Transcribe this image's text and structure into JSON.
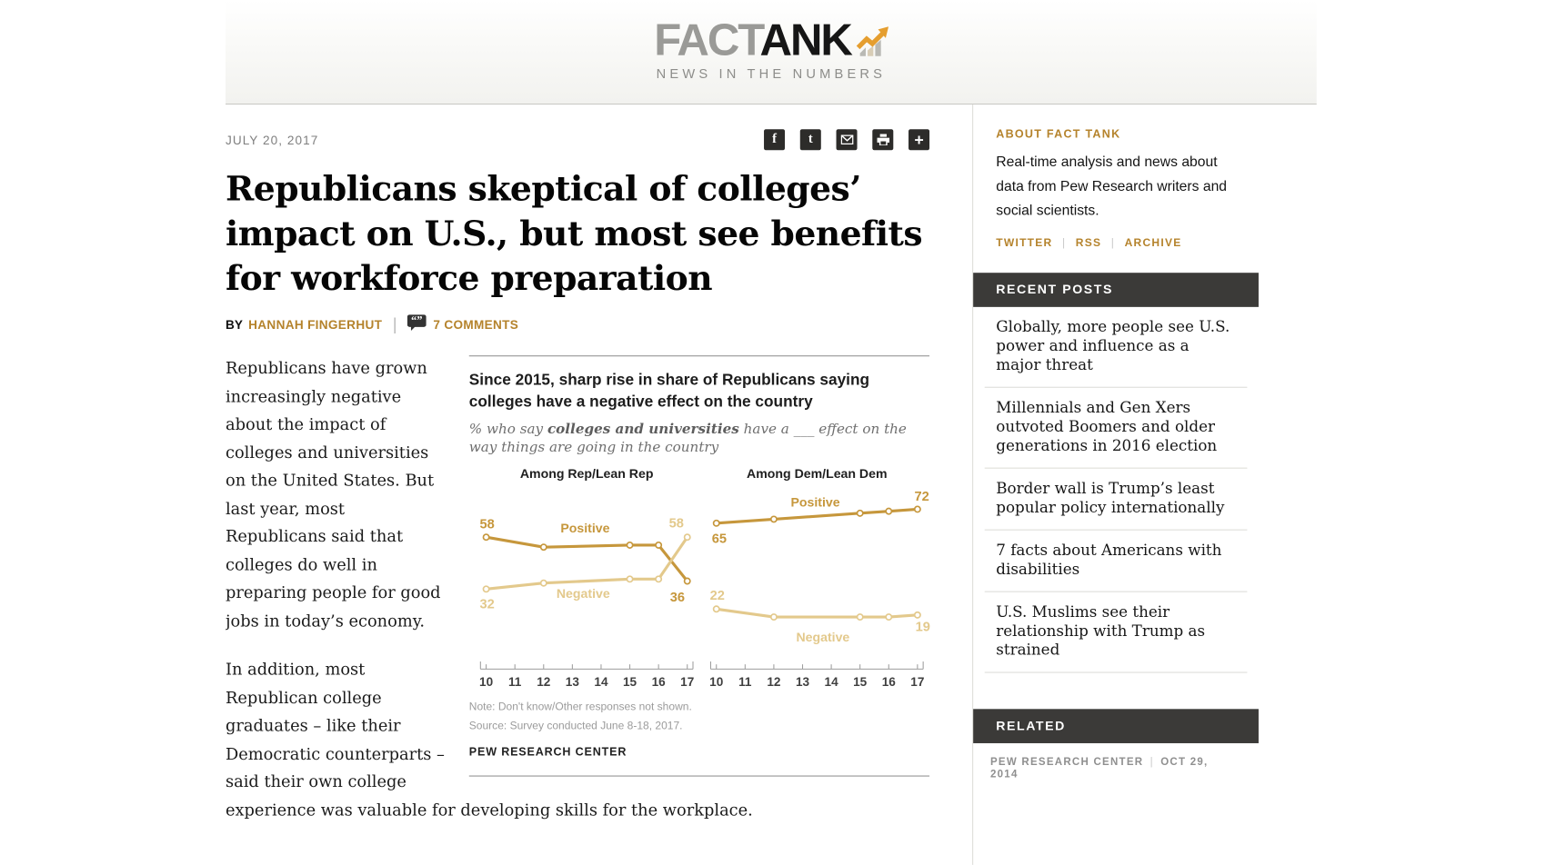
{
  "colors": {
    "accent_gold": "#b5832c",
    "dark_bar": "#3b3a38",
    "chart_positive": "#c6973c",
    "chart_negative": "#e3c98c"
  },
  "header": {
    "logo_part1": "FACT",
    "logo_part2": "ANK",
    "tagline": "NEWS IN THE NUMBERS"
  },
  "article": {
    "date": "JULY 20, 2017",
    "share_icons": [
      {
        "name": "facebook",
        "glyph": "f"
      },
      {
        "name": "twitter",
        "glyph": "t"
      },
      {
        "name": "email",
        "glyph": ""
      },
      {
        "name": "print",
        "glyph": ""
      },
      {
        "name": "more",
        "glyph": "+"
      }
    ],
    "title": "Republicans skeptical of colleges’ impact on U.S., but most see benefits for workforce preparation",
    "byline_prefix": "BY",
    "author": "HANNAH FINGERHUT",
    "comments_label": "7 COMMENTS",
    "paragraphs": [
      "Republicans have grown increasingly negative about the impact of colleges and universities on the United States. But last year, most Republicans said that colleges do well in preparing people for good jobs in today’s economy.",
      "In addition, most Republican college graduates – like their Democratic counterparts – said their own college experience was valuable for developing skills for the workplace."
    ]
  },
  "chart_data": {
    "type": "line",
    "title": "Since 2015, sharp rise in share of Republicans saying colleges have a negative effect on the country",
    "subtitle_prefix": "% who say ",
    "subtitle_bold": "colleges and universities",
    "subtitle_rest": " have a ___ effect on the way things are going in the country",
    "x_ticks": [
      10,
      11,
      12,
      13,
      14,
      15,
      16,
      17
    ],
    "x_tick_labels": [
      "10",
      "11",
      "12",
      "13",
      "14",
      "15",
      "16",
      "17"
    ],
    "ylim": [
      10,
      80
    ],
    "grid": false,
    "panels": [
      {
        "header": "Among Rep/Lean Rep",
        "series": [
          {
            "name": "Positive",
            "color_key": "chart_positive",
            "x": [
              10,
              12,
              15,
              16,
              17
            ],
            "values": [
              58,
              53,
              54,
              54,
              36
            ],
            "start_label": "58",
            "end_label": "36",
            "start_label_xy": [
              19,
              67
            ],
            "end_label_xy": [
              219,
              144
            ],
            "name_label_xy": [
              122,
              71
            ]
          },
          {
            "name": "Negative",
            "color_key": "chart_negative",
            "x": [
              10,
              12,
              15,
              16,
              17
            ],
            "values": [
              32,
              35,
              37,
              37,
              58
            ],
            "start_label": "32",
            "end_label": "58",
            "start_label_xy": [
              19,
              151
            ],
            "end_label_xy": [
              218,
              66
            ],
            "name_label_xy": [
              120,
              140
            ]
          }
        ]
      },
      {
        "header": "Among Dem/Lean Dem",
        "series": [
          {
            "name": "Positive",
            "color_key": "chart_positive",
            "x": [
              10,
              12,
              15,
              16,
              17
            ],
            "values": [
              65,
              67,
              70,
              71,
              72
            ],
            "start_label": "65",
            "end_label": "72",
            "start_label_xy": [
              263,
              82
            ],
            "end_label_xy": [
              476,
              38
            ],
            "name_label_xy": [
              364,
              44
            ]
          },
          {
            "name": "Negative",
            "color_key": "chart_negative",
            "x": [
              10,
              12,
              15,
              16,
              17
            ],
            "values": [
              22,
              18,
              18,
              18,
              19
            ],
            "start_label": "22",
            "end_label": "19",
            "start_label_xy": [
              261,
              142
            ],
            "end_label_xy": [
              477,
              175
            ],
            "name_label_xy": [
              372,
              186
            ]
          }
        ]
      }
    ],
    "note": "Note: Don't know/Other responses not shown.",
    "source": "Source: Survey conducted June 8-18, 2017.",
    "credit": "PEW RESEARCH CENTER"
  },
  "sidebar": {
    "about_header": "ABOUT FACT TANK",
    "about_text": "Real-time analysis and news about data from Pew Research writers and social scientists.",
    "links": [
      "TWITTER",
      "RSS",
      "ARCHIVE"
    ],
    "recent_header": "RECENT POSTS",
    "recent": [
      "Globally, more people see U.S. power and influence as a major threat",
      "Millennials and Gen Xers outvoted Boomers and older generations in 2016 election",
      "Border wall is Trump’s least popular policy internationally",
      "7 facts about Americans with disabilities",
      "U.S. Muslims see their relationship with Trump as strained"
    ],
    "related_header": "RELATED",
    "related_source": "PEW RESEARCH CENTER",
    "related_date": "OCT 29, 2014"
  }
}
